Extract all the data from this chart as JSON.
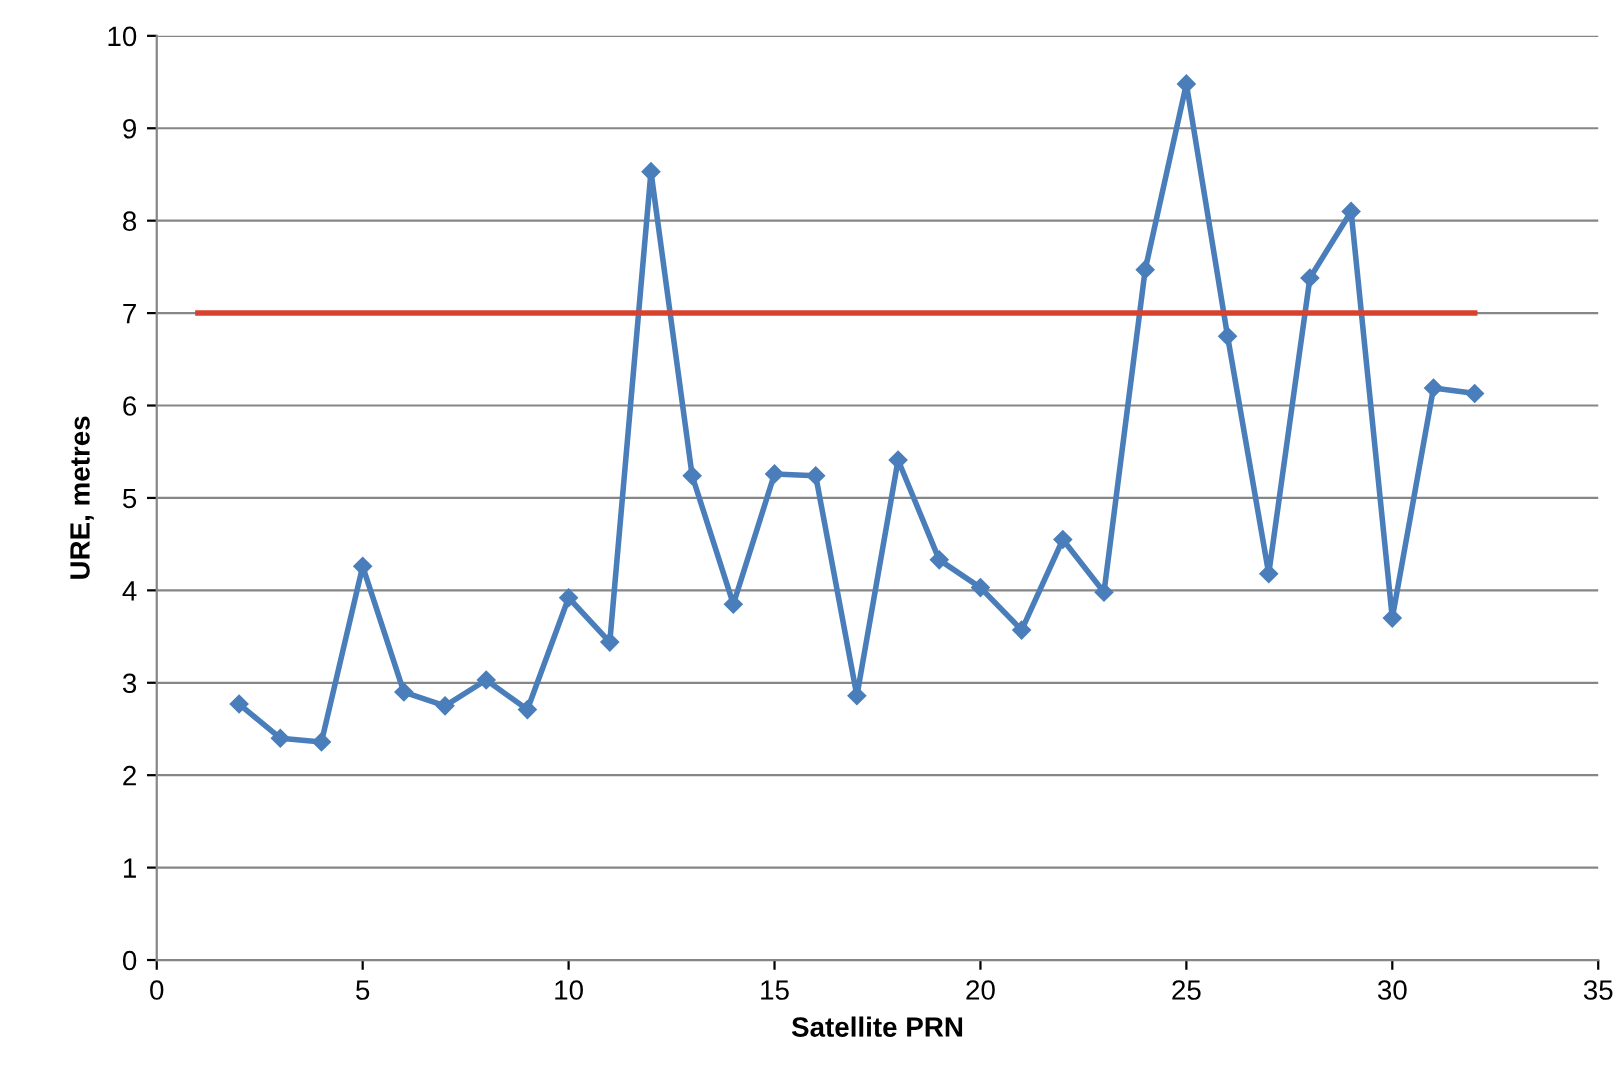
{
  "chart_data": {
    "type": "line",
    "xlabel": "Satellite PRN",
    "ylabel": "URE, metres",
    "series": [
      {
        "color": "#4a7ebb",
        "marker": "diamond",
        "x": [
          2,
          3,
          4,
          5,
          6,
          7,
          8,
          9,
          10,
          11,
          12,
          13,
          14,
          15,
          16,
          17,
          18,
          19,
          20,
          21,
          22,
          23,
          24,
          25,
          26,
          27,
          28,
          29,
          30,
          31,
          32
        ],
        "values": [
          2.77,
          2.4,
          2.36,
          4.26,
          2.9,
          2.75,
          3.03,
          2.71,
          3.92,
          3.44,
          8.53,
          5.24,
          3.85,
          5.26,
          5.24,
          2.86,
          5.41,
          4.33,
          4.03,
          3.57,
          4.55,
          3.98,
          7.47,
          9.48,
          6.75,
          4.18,
          7.38,
          8.1,
          3.7,
          6.19,
          6.13
        ]
      },
      {
        "color": "#d9412f",
        "marker": "none",
        "x": [
          1,
          32
        ],
        "values": [
          7,
          7
        ]
      }
    ],
    "xlim": [
      0,
      35
    ],
    "xticks": [
      0,
      5,
      10,
      15,
      20,
      25,
      30,
      35
    ],
    "ylim": [
      0,
      10
    ],
    "yticks": [
      0,
      1,
      2,
      3,
      4,
      5,
      6,
      7,
      8,
      9,
      10
    ],
    "grid": "y",
    "legend": false
  }
}
